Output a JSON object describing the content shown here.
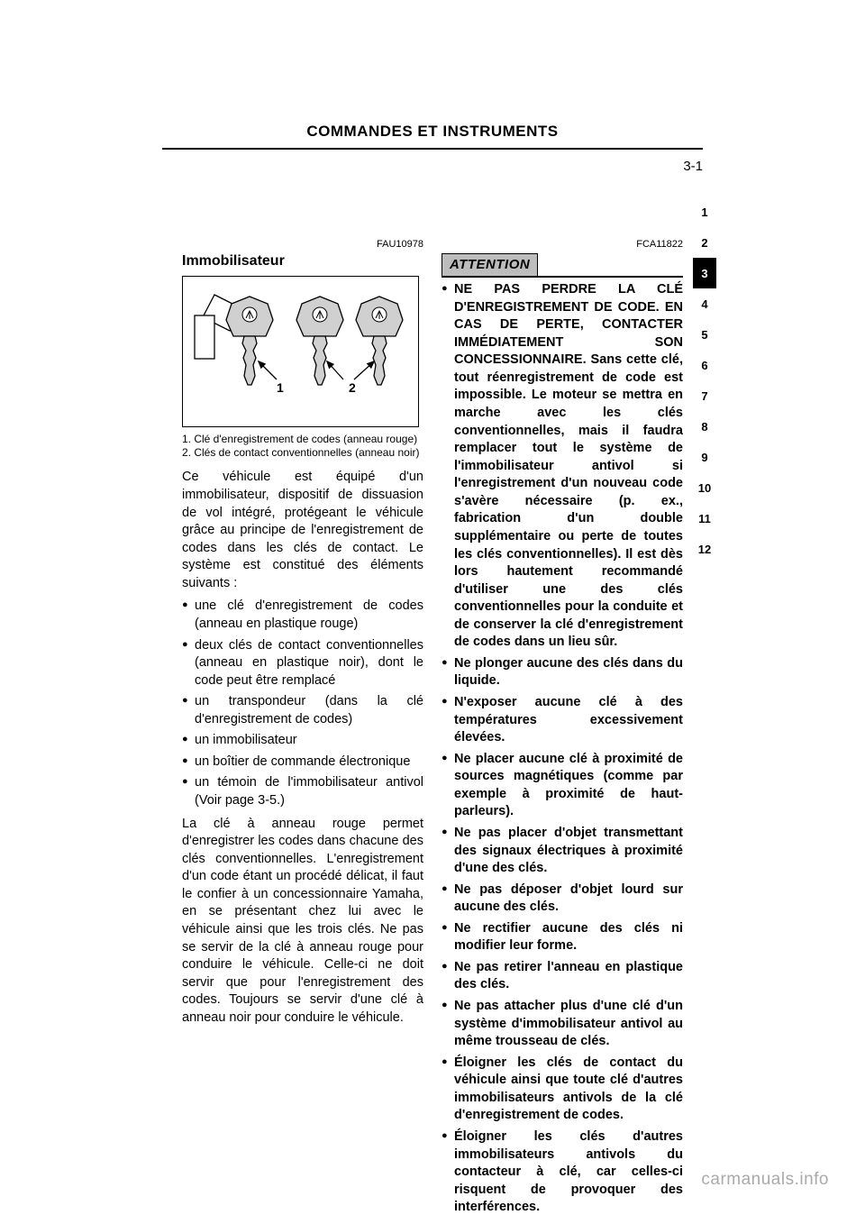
{
  "header": {
    "title": "COMMANDES ET INSTRUMENTS"
  },
  "page_number": "3-1",
  "sidebar": {
    "items": [
      "1",
      "2",
      "3",
      "4",
      "5",
      "6",
      "7",
      "8",
      "9",
      "10",
      "11",
      "12"
    ],
    "active_index": 2
  },
  "section": {
    "ref": "FAU10978",
    "title": "Immobilisateur",
    "intro": "Ce véhicule est équipé d'un immobilisateur, dispositif de dissuasion de vol intégré, protégeant le véhicule grâce au principe de l'enregistrement de codes dans les clés de contact. Le système est constitué des éléments suivants :",
    "list_intro_items": [
      "une clé d'enregistrement de codes (anneau en plastique rouge)",
      "deux clés de contact conventionnelles (anneau en plastique noir), dont le code peut être remplacé",
      "un transpondeur (dans la clé d'enregistrement de codes)",
      "un immobilisateur",
      "un boîtier de commande électronique",
      "un témoin de l'immobilisateur antivol (Voir page 3-5.)"
    ],
    "para_key": "La clé à anneau rouge permet d'enregistrer les codes dans chacune des clés conventionnelles. L'enregistrement d'un code étant un procédé délicat, il faut le confier à un concessionnaire Yamaha, en se présentant chez lui avec le véhicule ainsi que les trois clés. Ne pas se servir de la clé à anneau rouge pour conduire le véhicule. Celle-ci ne doit servir que pour l'enregistrement des codes. Toujours se servir d'une clé à anneau noir pour conduire le véhicule."
  },
  "figure": {
    "legend": {
      "l1": "1. Clé d'enregistrement de codes (anneau rouge)",
      "l2": "2. Clés de contact conventionnelles (anneau noir)"
    },
    "labels": {
      "one": "1",
      "two": "2"
    },
    "key_image": {
      "type": "figure",
      "description": "three motorcycle keys with logo heads; left key has tag attached",
      "key_positions_x": [
        74,
        152,
        218
      ],
      "key_head_fill": "#d0d0d0",
      "key_tag_fill": "#ffffff",
      "stroke": "#000000",
      "stroke_width": 1.3,
      "label_fontsize": 14,
      "label_fontweight": "bold",
      "arrow_paths": [
        {
          "from": [
            104,
            114
          ],
          "to": [
            84,
            94
          ]
        },
        {
          "from": [
            178,
            114
          ],
          "to": [
            160,
            94
          ]
        },
        {
          "from": [
            190,
            114
          ],
          "to": [
            212,
            94
          ]
        }
      ]
    }
  },
  "attention": {
    "label": "ATTENTION",
    "ref": "FCA11822",
    "bullets": [
      "NE PAS PERDRE LA CLÉ D'ENREGISTREMENT DE CODE. EN CAS DE PERTE, CONTACTER IMMÉDIATEMENT SON CONCESSIONNAIRE. Sans cette clé, tout réenregistrement de code est impossible. Le moteur se mettra en marche avec les clés conventionnelles, mais il faudra remplacer tout le système de l'immobilisateur antivol si l'enregistrement d'un nouveau code s'avère nécessaire (p. ex., fabrication d'un double supplémentaire ou perte de toutes les clés conventionnelles). Il est dès lors hautement recommandé d'utiliser une des clés conventionnelles pour la conduite et de conserver la clé d'enregistrement de codes dans un lieu sûr.",
      "Ne plonger aucune des clés dans du liquide.",
      "N'exposer aucune clé à des températures excessivement élevées.",
      "Ne placer aucune clé à proximité de sources magnétiques (comme par exemple à proximité de haut-parleurs).",
      "Ne pas placer d'objet transmettant des signaux électriques à proximité d'une des clés.",
      "Ne pas déposer d'objet lourd sur aucune des clés.",
      "Ne rectifier aucune des clés ni modifier leur forme.",
      "Ne pas retirer l'anneau en plastique des clés.",
      "Ne pas attacher plus d'une clé d'un système d'immobilisateur antivol au même trousseau de clés.",
      "Éloigner les clés de contact du véhicule ainsi que toute clé d'autres immobilisateurs antivols de la clé d'enregistrement de codes.",
      "Éloigner les clés d'autres immobilisateurs antivols du contacteur à clé, car celles-ci risquent de provoquer des interférences."
    ]
  },
  "footer": {
    "url": "carmanuals.info"
  }
}
